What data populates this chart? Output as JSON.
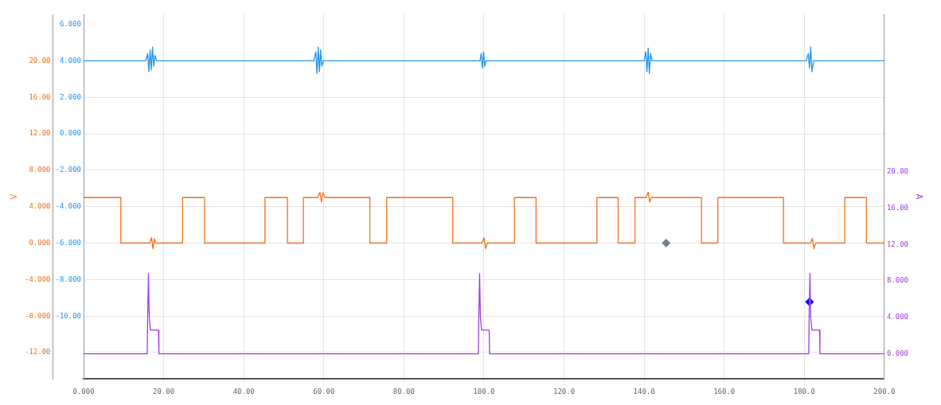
{
  "chart_data": {
    "type": "line",
    "ylabel": "V",
    "y2label": "A",
    "xlim": [
      0,
      200
    ],
    "xticks": [
      {
        "value": 0,
        "label": "0.000"
      },
      {
        "value": 20,
        "label": "20.00"
      },
      {
        "value": 40,
        "label": "40.00"
      },
      {
        "value": 60,
        "label": "60.00"
      },
      {
        "value": 80,
        "label": "80.00"
      },
      {
        "value": 100,
        "label": "100.0"
      },
      {
        "value": 120,
        "label": "120.0"
      },
      {
        "value": 140,
        "label": "140.0"
      },
      {
        "value": 160,
        "label": "160.0"
      },
      {
        "value": 180,
        "label": "180.0"
      },
      {
        "value": 200,
        "label": "200.0"
      }
    ],
    "ylim": [
      -14.9,
      25.1
    ],
    "yticks": [
      {
        "value": -12,
        "label": "-12.00"
      },
      {
        "value": -8,
        "label": "-8.000"
      },
      {
        "value": -4,
        "label": "-4.000"
      },
      {
        "value": 0,
        "label": "0.000"
      },
      {
        "value": 4,
        "label": "4.000"
      },
      {
        "value": 8,
        "label": "8.000"
      },
      {
        "value": 12,
        "label": "12.00"
      },
      {
        "value": 16,
        "label": "16.00"
      },
      {
        "value": 20,
        "label": "20.00"
      }
    ],
    "y2lim": [
      -2.75,
      37.25
    ],
    "y2ticks": [
      {
        "value": 0,
        "label": "0.000"
      },
      {
        "value": 4,
        "label": "4.000"
      },
      {
        "value": 8,
        "label": "8.000"
      },
      {
        "value": 12,
        "label": "12.00"
      },
      {
        "value": 16,
        "label": "16.00"
      },
      {
        "value": 20,
        "label": "20.00"
      }
    ],
    "y3lim": [
      -13.45,
      6.55
    ],
    "y3ticks": [
      {
        "value": -10,
        "label": "-10.00"
      },
      {
        "value": -8,
        "label": "-8.000"
      },
      {
        "value": -6,
        "label": "-6.000"
      },
      {
        "value": -4,
        "label": "-4.000"
      },
      {
        "value": -2,
        "label": "-2.000"
      },
      {
        "value": 0,
        "label": "0.000"
      },
      {
        "value": 2,
        "label": "2.000"
      },
      {
        "value": 4,
        "label": "4.000"
      },
      {
        "value": 6,
        "label": "6.000"
      }
    ],
    "grid": true,
    "legend": false,
    "marker": "none",
    "series": [
      {
        "color": "#2196f3",
        "axis": "y3",
        "x": [
          0,
          15.5,
          16,
          16.3,
          16.6,
          16.9,
          17.2,
          17.5,
          17.8,
          18.2,
          57.5,
          58,
          58.3,
          58.6,
          58.9,
          59.2,
          59.5,
          59.9,
          99,
          99.3,
          99.6,
          99.9,
          100.2,
          100.5,
          140,
          140.4,
          140.7,
          141,
          141.3,
          141.6,
          142,
          180.5,
          181,
          181.3,
          181.6,
          181.9,
          182.3,
          200
        ],
        "values": [
          4,
          4,
          4.4,
          3.4,
          4.6,
          3.5,
          4.75,
          3.7,
          4.3,
          4,
          4,
          4.5,
          3.3,
          4.75,
          3.4,
          4.6,
          3.7,
          4,
          4,
          4.4,
          3.6,
          4.5,
          3.7,
          4,
          4,
          4.5,
          3.4,
          4.7,
          3.3,
          4.4,
          4,
          4,
          4.4,
          3.6,
          4.75,
          3.4,
          4,
          4
        ]
      },
      {
        "color": "#f07020",
        "x": [
          0,
          9.3,
          9.3,
          16.5,
          17,
          17.3,
          17.7,
          18,
          24.7,
          24.7,
          30.2,
          30.2,
          45.3,
          45.3,
          50.9,
          50.9,
          54.9,
          54.9,
          58.5,
          59,
          59.4,
          59.8,
          60.3,
          71.5,
          71.5,
          75.7,
          75.7,
          92.2,
          92.2,
          99.5,
          100,
          100.4,
          100.8,
          107.6,
          107.6,
          113,
          113,
          128.2,
          128.2,
          133.5,
          133.5,
          137.7,
          137.7,
          140.5,
          141,
          141.4,
          141.8,
          154.3,
          154.3,
          158.4,
          158.4,
          174.8,
          174.8,
          181.5,
          182,
          182.4,
          182.8,
          190.1,
          190.1,
          195.5,
          195.5,
          200
        ],
        "values": [
          5,
          5,
          0,
          0,
          0.6,
          -0.6,
          0.5,
          0,
          0,
          5,
          5,
          0,
          0,
          5,
          5,
          0,
          0,
          5,
          5,
          5.6,
          4.5,
          5.5,
          5,
          5,
          0,
          0,
          5,
          5,
          0,
          0,
          0.6,
          -0.6,
          0,
          0,
          5,
          5,
          0,
          0,
          5,
          5,
          0,
          0,
          5,
          5,
          5.6,
          4.5,
          5,
          5,
          0,
          0,
          5,
          5,
          0,
          0,
          0.5,
          -0.6,
          0,
          0,
          5,
          5,
          0,
          0
        ]
      },
      {
        "color": "#a040e0",
        "axis": "y2",
        "x": [
          0,
          15.9,
          16,
          16.2,
          16.4,
          16.7,
          18.7,
          18.8,
          98.6,
          98.7,
          98.9,
          99.1,
          99.4,
          101.3,
          101.4,
          181.1,
          181.2,
          181.4,
          181.6,
          181.9,
          183.8,
          183.9,
          200
        ],
        "values": [
          0,
          0,
          4,
          8.8,
          4,
          2.6,
          2.6,
          0,
          0,
          4,
          8.8,
          4,
          2.6,
          2.6,
          0,
          0,
          4,
          8.8,
          4,
          2.6,
          2.6,
          0,
          0
        ]
      },
      {
        "type": "scatter",
        "marker": "diamond",
        "color": "#708090",
        "x": [
          145.5
        ],
        "values": [
          0
        ]
      },
      {
        "type": "scatter",
        "marker": "diamond",
        "color": "#0000ff",
        "axis": "y2",
        "x": [
          181.3
        ],
        "values": [
          5.7
        ]
      }
    ]
  }
}
